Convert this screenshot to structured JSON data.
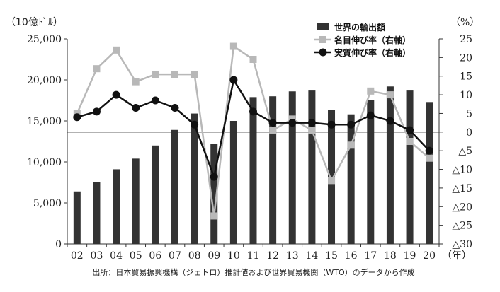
{
  "chart_data": {
    "type": "bar",
    "categories": [
      "02",
      "03",
      "04",
      "05",
      "06",
      "07",
      "08",
      "09",
      "10",
      "11",
      "12",
      "13",
      "14",
      "15",
      "16",
      "17",
      "18",
      "19",
      "20"
    ],
    "x_unit": "（年）",
    "y_left": {
      "unit": "（10億ﾄﾞﾙ）",
      "range": [
        0,
        25000
      ],
      "ticks": [
        "0",
        "5,000",
        "10,000",
        "15,000",
        "20,000",
        "25,000"
      ],
      "tick_values": [
        0,
        5000,
        10000,
        15000,
        20000,
        25000
      ]
    },
    "y_right": {
      "unit": "（%）",
      "range": [
        -30,
        25
      ],
      "ticks": [
        "△30",
        "△25",
        "△20",
        "△15",
        "△10",
        "△5",
        "0",
        "5",
        "10",
        "15",
        "20",
        "25"
      ],
      "tick_values": [
        -30,
        -25,
        -20,
        -15,
        -10,
        -5,
        0,
        5,
        10,
        15,
        20,
        25
      ]
    },
    "series": [
      {
        "name": "世界の輸出額",
        "type": "bar",
        "axis": "left",
        "color": "#333333",
        "values": [
          6400,
          7500,
          9100,
          10400,
          12000,
          13900,
          15900,
          12200,
          15000,
          17900,
          18000,
          18600,
          18700,
          16300,
          15800,
          17500,
          19200,
          18700,
          17300
        ]
      },
      {
        "name": "名目伸び率（右軸）",
        "type": "line",
        "axis": "right",
        "color": "#b8b8b8",
        "marker": "square",
        "values": [
          5,
          17,
          22,
          13.5,
          15.5,
          15.5,
          15.5,
          -22.5,
          23,
          19.5,
          0.5,
          3.5,
          0.5,
          -13,
          -3.5,
          11,
          10,
          -2.5,
          -7
        ]
      },
      {
        "name": "実質伸び率（右軸）",
        "type": "line",
        "axis": "right",
        "color": "#111111",
        "marker": "circle",
        "values": [
          4,
          5.5,
          10,
          6.5,
          8.5,
          6.5,
          2,
          -12,
          14,
          5.5,
          2.5,
          2.5,
          2.5,
          2,
          2,
          4.5,
          3,
          0.5,
          -5
        ]
      }
    ],
    "legend": "top-right",
    "grid": false,
    "source": "出所：日本貿易振興機構（ジェトロ）推計値および世界貿易機関（WTO）のデータから作成"
  }
}
